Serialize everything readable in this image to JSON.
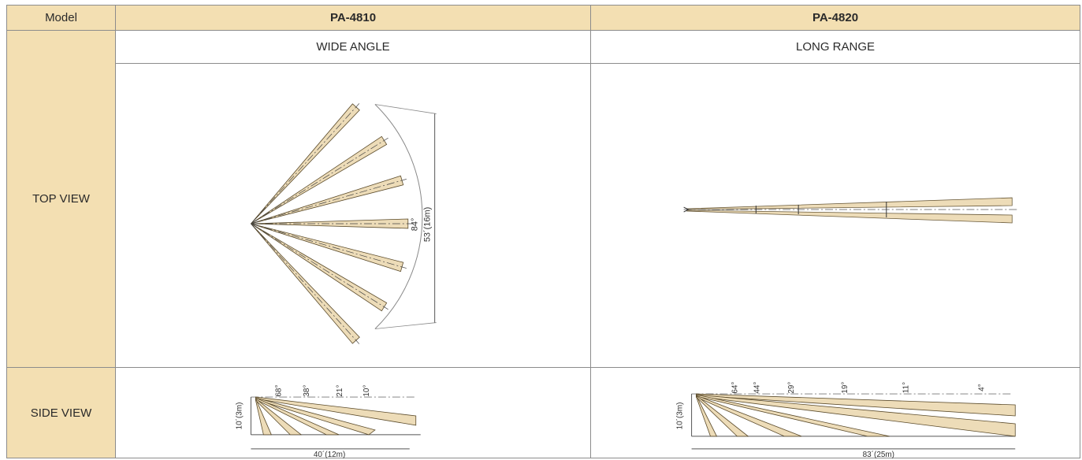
{
  "table": {
    "model_label": "Model",
    "models": [
      "PA-4810",
      "PA-4820"
    ],
    "patterns": [
      "WIDE ANGLE",
      "LONG RANGE"
    ],
    "rows": [
      "TOP VIEW",
      "SIDE VIEW"
    ]
  },
  "pa4810": {
    "top": {
      "angle": "84°",
      "width": "53´(16m)"
    },
    "side": {
      "height": "10´(3m)",
      "length": "40´(12m)",
      "angles": [
        "68°",
        "38°",
        "21°",
        "10°"
      ]
    }
  },
  "pa4820": {
    "side": {
      "height": "10´(3m)",
      "length": "83´(25m)",
      "angles": [
        "64°",
        "44°",
        "29°",
        "19°",
        "11°",
        "4°"
      ]
    }
  },
  "colors": {
    "header_bg": "#f3dfb2",
    "beam_fill": "#eddcb8",
    "beam_dark": "#5a4a2a",
    "border": "#8c8c8c"
  }
}
